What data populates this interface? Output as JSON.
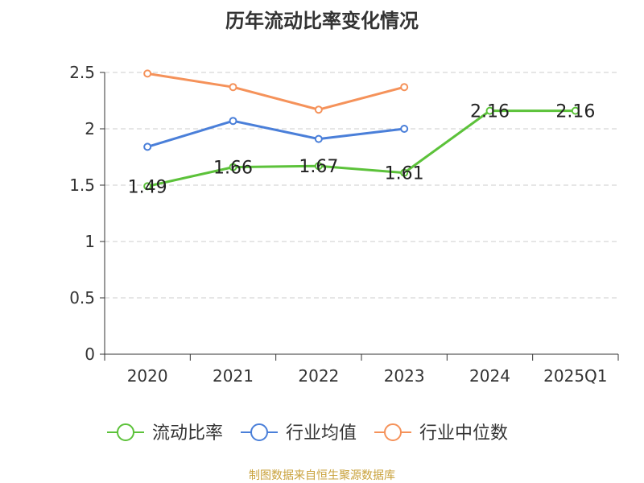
{
  "title": "历年流动比率变化情况",
  "footer": "制图数据来自恒生聚源数据库",
  "chart_data": {
    "type": "line",
    "title": "历年流动比率变化情况",
    "categories": [
      "2020",
      "2021",
      "2022",
      "2023",
      "2024",
      "2025Q1"
    ],
    "ylim": [
      0,
      2.5
    ],
    "yticks": [
      "0",
      "0.5",
      "1",
      "1.5",
      "2",
      "2.5"
    ],
    "ytick_values": [
      0,
      0.5,
      1,
      1.5,
      2,
      2.5
    ],
    "grid": true,
    "legend_position": "bottom",
    "series": [
      {
        "name": "流动比率",
        "color": "#5cc23a",
        "values": [
          1.49,
          1.66,
          1.67,
          1.61,
          2.16,
          2.16
        ],
        "labels": [
          "1.49",
          "1.66",
          "1.67",
          "1.61",
          "2.16",
          "2.16"
        ]
      },
      {
        "name": "行业均值",
        "color": "#4a7fd9",
        "values": [
          1.84,
          2.07,
          1.91,
          2.0,
          null,
          null
        ]
      },
      {
        "name": "行业中位数",
        "color": "#f5925a",
        "values": [
          2.49,
          2.37,
          2.17,
          2.37,
          null,
          null
        ]
      }
    ]
  }
}
